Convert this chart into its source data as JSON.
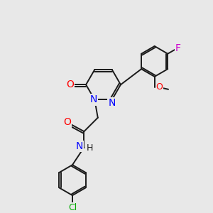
{
  "background_color": "#e8e8e8",
  "bond_color": "#1a1a1a",
  "atom_colors": {
    "N": "#0000ff",
    "O": "#ff0000",
    "Cl": "#00aa00",
    "F": "#cc00cc"
  },
  "font_size": 9
}
